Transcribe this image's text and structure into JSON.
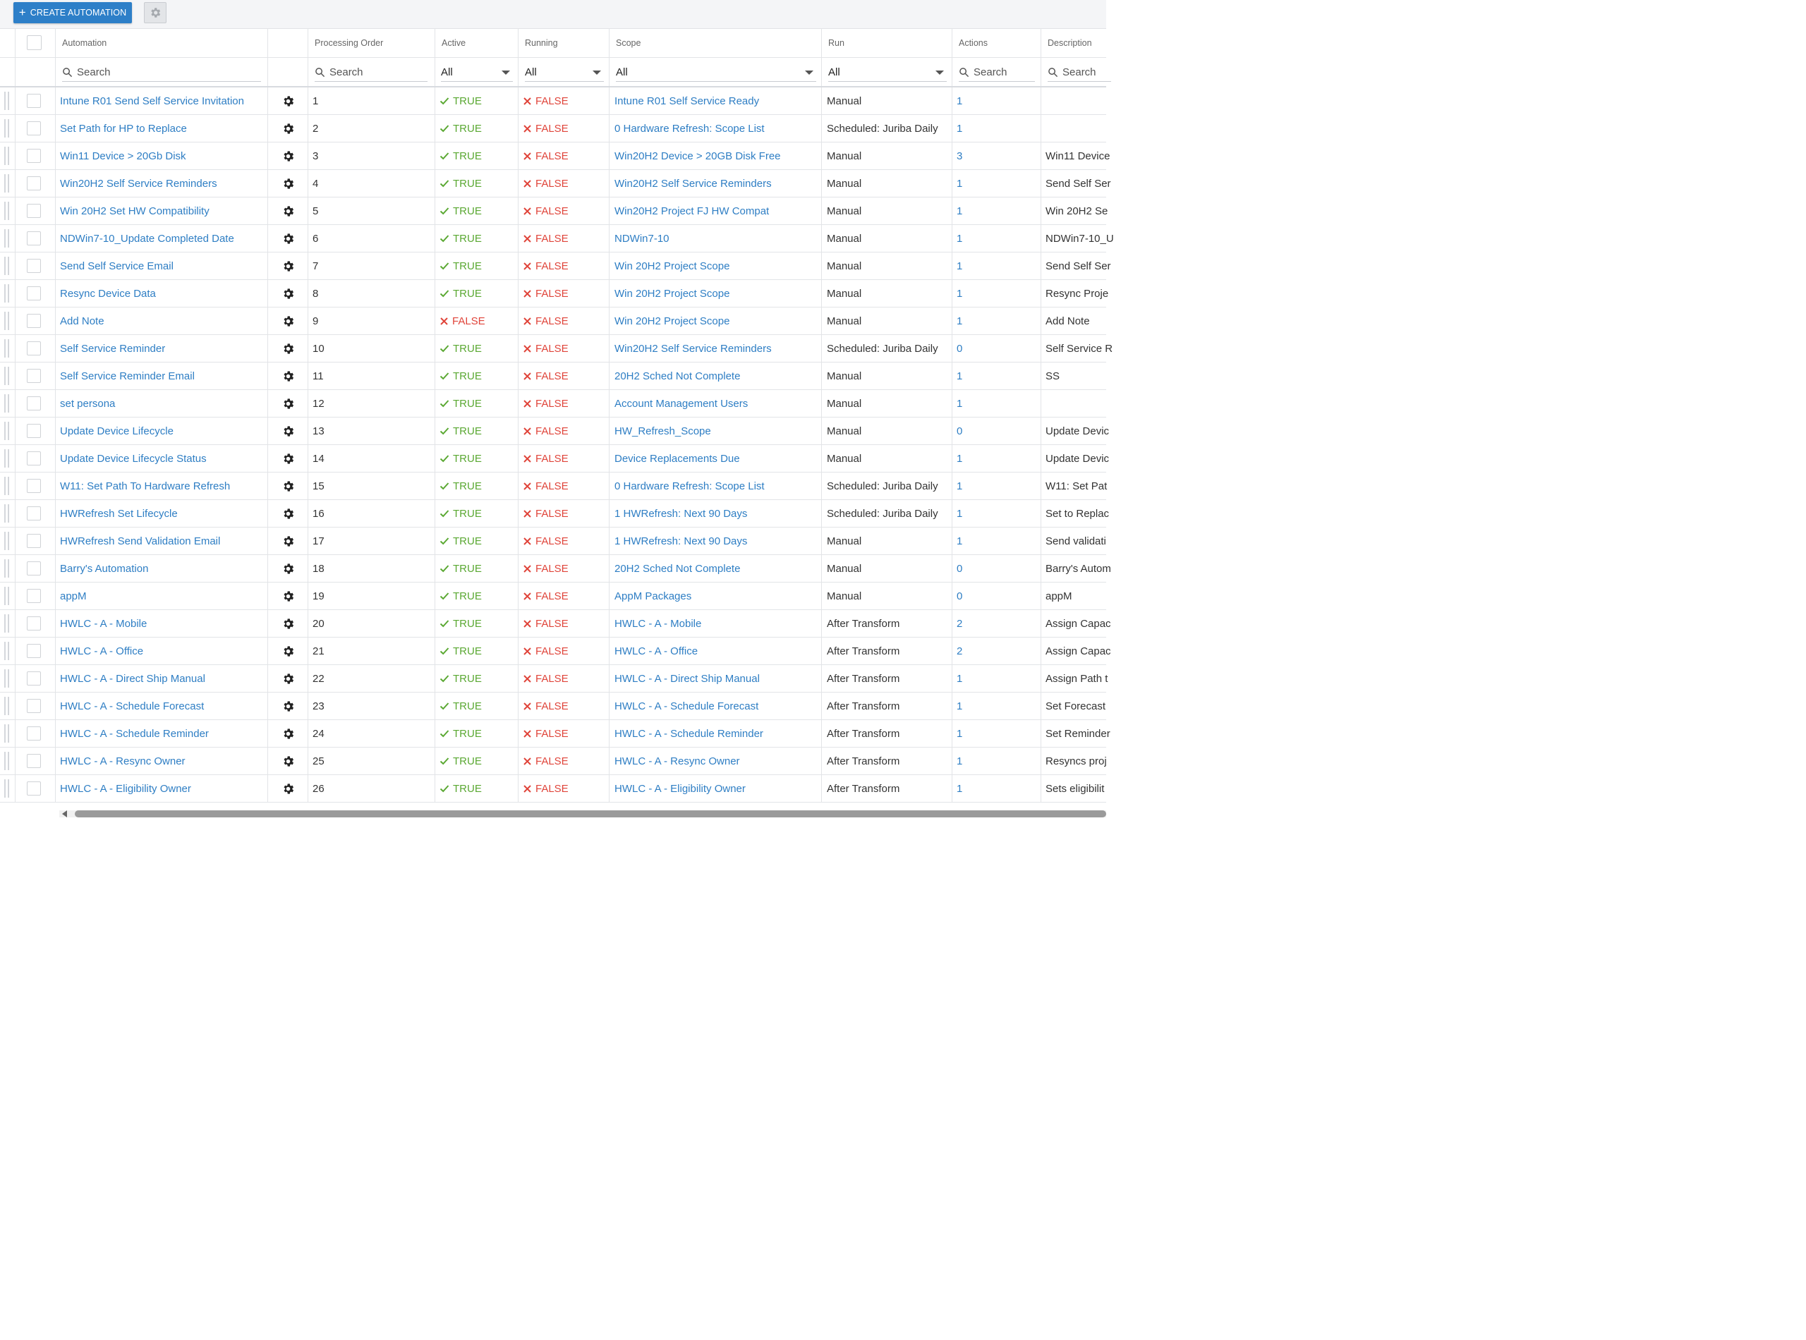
{
  "toolbar": {
    "create_label": "CREATE AUTOMATION",
    "create_icon": "plus-icon",
    "settings_icon": "gear-icon"
  },
  "columns": {
    "automation": "Automation",
    "processing_order": "Processing Order",
    "active": "Active",
    "running": "Running",
    "scope": "Scope",
    "run": "Run",
    "actions": "Actions",
    "description": "Description"
  },
  "filters": {
    "automation_placeholder": "Search",
    "processing_order_placeholder": "Search",
    "active_value": "All",
    "running_value": "All",
    "scope_value": "All",
    "run_value": "All",
    "actions_placeholder": "Search",
    "description_placeholder": "Search"
  },
  "colors": {
    "link": "#2e7ec4",
    "true": "#5aa832",
    "false": "#e0443a",
    "accent": "#2d7fc8"
  },
  "rows": [
    {
      "automation": "Intune R01 Send Self Service Invitation",
      "order": "1",
      "active": "TRUE",
      "running": "FALSE",
      "scope": "Intune R01 Self Service Ready",
      "run": "Manual",
      "actions": "1",
      "description": ""
    },
    {
      "automation": "Set Path for HP to Replace",
      "order": "2",
      "active": "TRUE",
      "running": "FALSE",
      "scope": "0 Hardware Refresh: Scope List",
      "run": "Scheduled: Juriba Daily",
      "actions": "1",
      "description": ""
    },
    {
      "automation": "Win11 Device > 20Gb Disk",
      "order": "3",
      "active": "TRUE",
      "running": "FALSE",
      "scope": "Win20H2 Device > 20GB Disk Free",
      "run": "Manual",
      "actions": "3",
      "description": "Win11 Device"
    },
    {
      "automation": "Win20H2 Self Service Reminders",
      "order": "4",
      "active": "TRUE",
      "running": "FALSE",
      "scope": "Win20H2 Self Service Reminders",
      "run": "Manual",
      "actions": "1",
      "description": "Send Self Ser"
    },
    {
      "automation": "Win 20H2 Set HW Compatibility",
      "order": "5",
      "active": "TRUE",
      "running": "FALSE",
      "scope": "Win20H2 Project FJ HW Compat",
      "run": "Manual",
      "actions": "1",
      "description": "Win 20H2 Se"
    },
    {
      "automation": "NDWin7-10_Update Completed Date",
      "order": "6",
      "active": "TRUE",
      "running": "FALSE",
      "scope": "NDWin7-10",
      "run": "Manual",
      "actions": "1",
      "description": "NDWin7-10_U"
    },
    {
      "automation": "Send Self Service Email",
      "order": "7",
      "active": "TRUE",
      "running": "FALSE",
      "scope": "Win 20H2 Project Scope",
      "run": "Manual",
      "actions": "1",
      "description": "Send Self Ser"
    },
    {
      "automation": "Resync Device Data",
      "order": "8",
      "active": "TRUE",
      "running": "FALSE",
      "scope": "Win 20H2 Project Scope",
      "run": "Manual",
      "actions": "1",
      "description": "Resync Proje"
    },
    {
      "automation": "Add Note",
      "order": "9",
      "active": "FALSE",
      "running": "FALSE",
      "scope": "Win 20H2 Project Scope",
      "run": "Manual",
      "actions": "1",
      "description": "Add Note"
    },
    {
      "automation": "Self Service Reminder",
      "order": "10",
      "active": "TRUE",
      "running": "FALSE",
      "scope": "Win20H2 Self Service Reminders",
      "run": "Scheduled: Juriba Daily",
      "actions": "0",
      "description": "Self Service R"
    },
    {
      "automation": "Self Service Reminder Email",
      "order": "11",
      "active": "TRUE",
      "running": "FALSE",
      "scope": "20H2 Sched Not Complete",
      "run": "Manual",
      "actions": "1",
      "description": "SS"
    },
    {
      "automation": "set persona",
      "order": "12",
      "active": "TRUE",
      "running": "FALSE",
      "scope": "Account Management Users",
      "run": "Manual",
      "actions": "1",
      "description": ""
    },
    {
      "automation": "Update Device Lifecycle",
      "order": "13",
      "active": "TRUE",
      "running": "FALSE",
      "scope": "HW_Refresh_Scope",
      "run": "Manual",
      "actions": "0",
      "description": "Update Devic"
    },
    {
      "automation": "Update Device Lifecycle Status",
      "order": "14",
      "active": "TRUE",
      "running": "FALSE",
      "scope": "Device Replacements Due",
      "run": "Manual",
      "actions": "1",
      "description": "Update Devic"
    },
    {
      "automation": "W11: Set Path To Hardware Refresh",
      "order": "15",
      "active": "TRUE",
      "running": "FALSE",
      "scope": "0 Hardware Refresh: Scope List",
      "run": "Scheduled: Juriba Daily",
      "actions": "1",
      "description": "W11: Set Pat"
    },
    {
      "automation": "HWRefresh Set Lifecycle",
      "order": "16",
      "active": "TRUE",
      "running": "FALSE",
      "scope": "1 HWRefresh: Next 90 Days",
      "run": "Scheduled: Juriba Daily",
      "actions": "1",
      "description": "Set to Replac"
    },
    {
      "automation": "HWRefresh Send Validation Email",
      "order": "17",
      "active": "TRUE",
      "running": "FALSE",
      "scope": "1 HWRefresh: Next 90 Days",
      "run": "Manual",
      "actions": "1",
      "description": "Send validati"
    },
    {
      "automation": "Barry's Automation",
      "order": "18",
      "active": "TRUE",
      "running": "FALSE",
      "scope": "20H2 Sched Not Complete",
      "run": "Manual",
      "actions": "0",
      "description": "Barry's Autom"
    },
    {
      "automation": "appM",
      "order": "19",
      "active": "TRUE",
      "running": "FALSE",
      "scope": "AppM Packages",
      "run": "Manual",
      "actions": "0",
      "description": "appM"
    },
    {
      "automation": "HWLC - A - Mobile",
      "order": "20",
      "active": "TRUE",
      "running": "FALSE",
      "scope": "HWLC - A - Mobile",
      "run": "After Transform",
      "actions": "2",
      "description": "Assign Capac"
    },
    {
      "automation": "HWLC - A - Office",
      "order": "21",
      "active": "TRUE",
      "running": "FALSE",
      "scope": "HWLC - A - Office",
      "run": "After Transform",
      "actions": "2",
      "description": "Assign Capac"
    },
    {
      "automation": "HWLC - A - Direct Ship Manual",
      "order": "22",
      "active": "TRUE",
      "running": "FALSE",
      "scope": "HWLC - A - Direct Ship Manual",
      "run": "After Transform",
      "actions": "1",
      "description": "Assign Path t"
    },
    {
      "automation": "HWLC - A - Schedule Forecast",
      "order": "23",
      "active": "TRUE",
      "running": "FALSE",
      "scope": "HWLC - A - Schedule Forecast",
      "run": "After Transform",
      "actions": "1",
      "description": "Set Forecast"
    },
    {
      "automation": "HWLC - A - Schedule Reminder",
      "order": "24",
      "active": "TRUE",
      "running": "FALSE",
      "scope": "HWLC - A - Schedule Reminder",
      "run": "After Transform",
      "actions": "1",
      "description": "Set Reminder"
    },
    {
      "automation": "HWLC - A - Resync Owner",
      "order": "25",
      "active": "TRUE",
      "running": "FALSE",
      "scope": "HWLC - A - Resync Owner",
      "run": "After Transform",
      "actions": "1",
      "description": "Resyncs proj"
    },
    {
      "automation": "HWLC - A - Eligibility Owner",
      "order": "26",
      "active": "TRUE",
      "running": "FALSE",
      "scope": "HWLC - A - Eligibility Owner",
      "run": "After Transform",
      "actions": "1",
      "description": "Sets eligibilit"
    }
  ]
}
